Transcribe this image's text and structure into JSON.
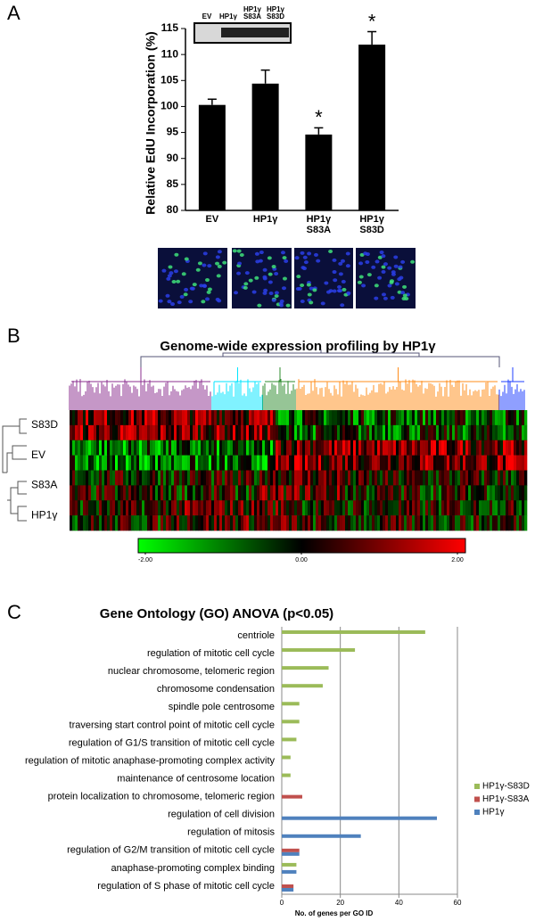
{
  "chart_data": [
    {
      "panel": "A",
      "type": "bar",
      "blot_labels": [
        "EV",
        "HP1γ",
        "HP1γ S83A",
        "HP1γ S83D"
      ],
      "ylabel": "Relative EdU Incorporation (%)",
      "categories": [
        "EV",
        "HP1γ",
        "HP1γ S83A",
        "HP1γ S83D"
      ],
      "values": [
        100.3,
        104.4,
        94.6,
        111.9
      ],
      "errors": [
        1.1,
        2.6,
        1.3,
        2.5
      ],
      "color": "#000000",
      "ylim": [
        80,
        115
      ],
      "yticks": [
        80,
        85,
        90,
        95,
        100,
        105,
        110,
        115
      ],
      "annotations": [
        {
          "text": "*",
          "category": "HP1γ S83A"
        },
        {
          "text": "*",
          "category": "HP1γ S83D"
        }
      ]
    },
    {
      "panel": "B",
      "type": "heatmap",
      "title": "Genome-wide expression profiling by HP1γ",
      "rows": [
        "S83D",
        "EV",
        "S83A",
        "HP1γ"
      ],
      "colors": [
        "#00ff00",
        "#000000",
        "#ff0000"
      ],
      "clim": [
        -2,
        2
      ],
      "cticks": [
        {
          "value": -2,
          "label": "-2.00"
        },
        {
          "value": 0,
          "label": "0.00"
        },
        {
          "value": 2,
          "label": "2.00"
        }
      ]
    },
    {
      "panel": "C",
      "type": "hbar",
      "title": "Gene Ontology (GO) ANOVA (p<0.05)",
      "xlabel": "No. of genes per GO ID",
      "categories": [
        "centriole",
        "regulation of mitotic cell cycle",
        "nuclear chromosome, telomeric region",
        "chromosome condensation",
        "spindle pole centrosome",
        "traversing start control point of mitotic cell cycle",
        "regulation of G1/S transition of mitotic cell cycle",
        "regulation of mitotic anaphase-promoting complex activity",
        "maintenance of centrosome location",
        "protein localization to chromosome, telomeric region",
        "regulation of cell division",
        "regulation of mitosis",
        "regulation of G2/M transition of mitotic cell cycle",
        "anaphase-promoting complex binding",
        "regulation of S phase of mitotic cell cycle"
      ],
      "series": [
        {
          "name": "HP1γ-S83D",
          "color": "#9bbb59",
          "values": [
            49,
            25,
            16,
            14,
            6,
            6,
            5,
            3,
            3,
            null,
            null,
            null,
            null,
            5,
            null
          ]
        },
        {
          "name": "HP1γ-S83A",
          "color": "#c0504d",
          "values": [
            null,
            null,
            null,
            null,
            null,
            null,
            null,
            null,
            null,
            7,
            null,
            null,
            6,
            null,
            4
          ]
        },
        {
          "name": "HP1γ",
          "color": "#4f81bd",
          "values": [
            null,
            null,
            null,
            null,
            null,
            null,
            null,
            null,
            null,
            null,
            53,
            27,
            6,
            5,
            4
          ]
        }
      ],
      "xlim": [
        0,
        60
      ],
      "xticks": [
        0,
        20,
        40,
        60
      ],
      "grid": true
    }
  ]
}
